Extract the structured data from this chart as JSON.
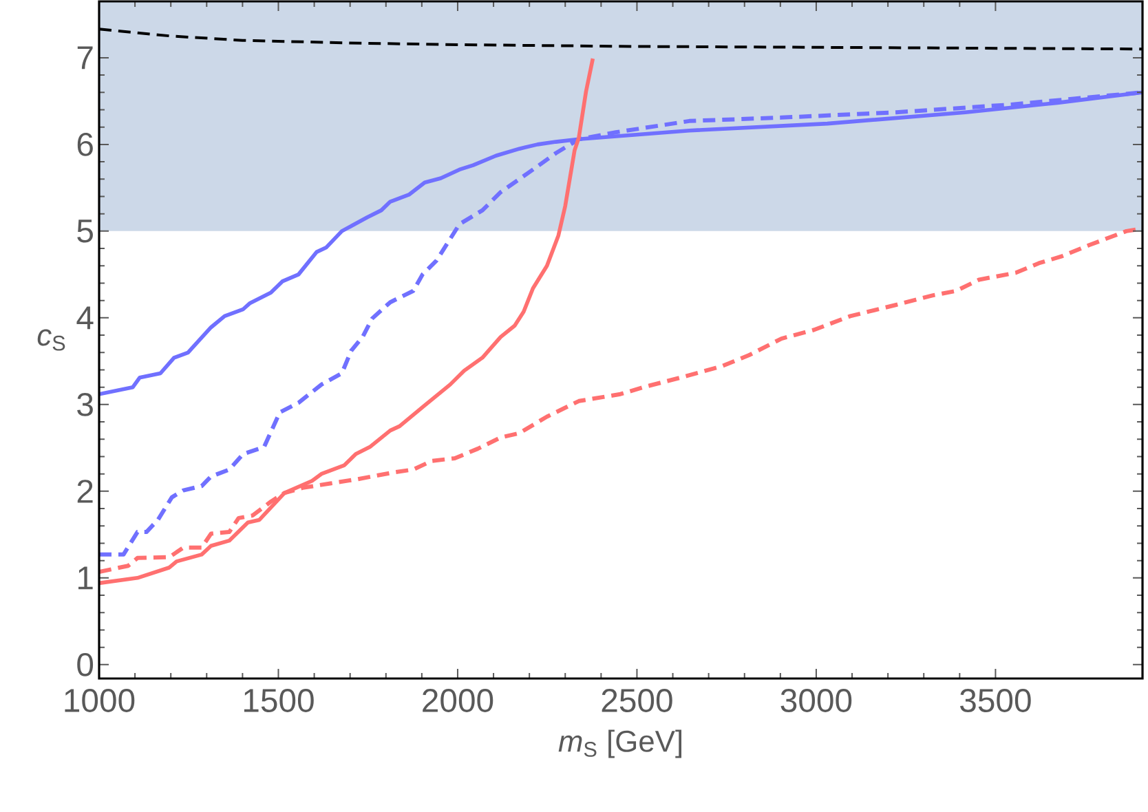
{
  "chart_data": {
    "type": "line",
    "xlabel": "*m*$_{S}$ [GeV]",
    "ylabel": "*c*$_{S}$",
    "xlim": [
      1000,
      3910
    ],
    "ylim": [
      -0.16,
      7.65
    ],
    "xticks": [
      1000,
      1500,
      2000,
      2500,
      3000,
      3500
    ],
    "yticks": [
      0,
      1,
      2,
      3,
      4,
      5,
      6,
      7
    ],
    "bands": [
      {
        "axis": "y",
        "from": 5,
        "to": 7.65,
        "color": "#ccd8e8"
      }
    ],
    "series": [
      {
        "color": "#000000",
        "line_style": "dashed",
        "x": [
          1000,
          1200,
          1400,
          1700,
          2000,
          2500,
          3000,
          3910
        ],
        "values": [
          7.33,
          7.25,
          7.2,
          7.17,
          7.15,
          7.13,
          7.12,
          7.1
        ]
      },
      {
        "color": "#7070ff",
        "line_style": "solid",
        "x": [
          1000,
          1094,
          1113,
          1171,
          1209,
          1248,
          1312,
          1350,
          1402,
          1421,
          1479,
          1511,
          1556,
          1607,
          1633,
          1677,
          1748,
          1787,
          1812,
          1864,
          1908,
          1953,
          2005,
          2043,
          2107,
          2172,
          2223,
          2274,
          2338,
          2646,
          3031,
          3416,
          3673,
          3910
        ],
        "values": [
          3.12,
          3.2,
          3.31,
          3.36,
          3.54,
          3.6,
          3.89,
          4.02,
          4.1,
          4.17,
          4.29,
          4.42,
          4.5,
          4.76,
          4.81,
          5.0,
          5.16,
          5.24,
          5.34,
          5.42,
          5.56,
          5.61,
          5.71,
          5.76,
          5.87,
          5.95,
          6.0,
          6.03,
          6.06,
          6.16,
          6.24,
          6.37,
          6.48,
          6.6
        ]
      },
      {
        "color": "#7070ff",
        "line_style": "dashed",
        "x": [
          1000,
          1068,
          1107,
          1132,
          1164,
          1203,
          1235,
          1286,
          1312,
          1363,
          1402,
          1460,
          1504,
          1556,
          1620,
          1677,
          1703,
          1735,
          1761,
          1812,
          1876,
          1902,
          1941,
          1973,
          2005,
          2069,
          2120,
          2210,
          2274,
          2338,
          2441,
          2646,
          2903,
          3223,
          3544,
          3910
        ],
        "values": [
          1.27,
          1.27,
          1.53,
          1.53,
          1.67,
          1.93,
          2.01,
          2.06,
          2.17,
          2.25,
          2.43,
          2.51,
          2.91,
          3.02,
          3.23,
          3.36,
          3.62,
          3.78,
          3.99,
          4.18,
          4.31,
          4.5,
          4.66,
          4.87,
          5.08,
          5.24,
          5.45,
          5.71,
          5.9,
          6.06,
          6.14,
          6.27,
          6.31,
          6.37,
          6.46,
          6.6
        ]
      },
      {
        "color": "#ff7070",
        "line_style": "solid",
        "x": [
          1000,
          1107,
          1196,
          1216,
          1286,
          1312,
          1363,
          1415,
          1447,
          1517,
          1594,
          1620,
          1684,
          1716,
          1755,
          1812,
          1838,
          1908,
          1979,
          2018,
          2069,
          2120,
          2159,
          2184,
          2210,
          2249,
          2281,
          2300,
          2326,
          2338,
          2358,
          2377
        ],
        "values": [
          0.94,
          1.0,
          1.12,
          1.19,
          1.27,
          1.37,
          1.43,
          1.64,
          1.67,
          1.98,
          2.12,
          2.2,
          2.3,
          2.43,
          2.51,
          2.7,
          2.75,
          2.99,
          3.23,
          3.39,
          3.54,
          3.78,
          3.91,
          4.07,
          4.34,
          4.6,
          4.95,
          5.29,
          5.93,
          6.08,
          6.61,
          6.99
        ]
      },
      {
        "color": "#ff7070",
        "line_style": "dashed",
        "x": [
          1000,
          1081,
          1107,
          1196,
          1235,
          1286,
          1312,
          1363,
          1389,
          1428,
          1479,
          1517,
          1568,
          1645,
          1722,
          1825,
          1876,
          1928,
          1992,
          2056,
          2120,
          2172,
          2249,
          2338,
          2454,
          2518,
          2621,
          2736,
          2813,
          2903,
          2993,
          3095,
          3223,
          3326,
          3390,
          3454,
          3557,
          3621,
          3685,
          3762,
          3865,
          3910
        ],
        "values": [
          1.07,
          1.14,
          1.23,
          1.24,
          1.35,
          1.35,
          1.51,
          1.53,
          1.69,
          1.72,
          1.88,
          1.98,
          2.04,
          2.09,
          2.14,
          2.22,
          2.25,
          2.35,
          2.38,
          2.49,
          2.62,
          2.67,
          2.86,
          3.04,
          3.12,
          3.2,
          3.31,
          3.44,
          3.57,
          3.76,
          3.86,
          4.02,
          4.15,
          4.26,
          4.31,
          4.44,
          4.52,
          4.63,
          4.71,
          4.84,
          5.0,
          5.03
        ]
      }
    ]
  }
}
